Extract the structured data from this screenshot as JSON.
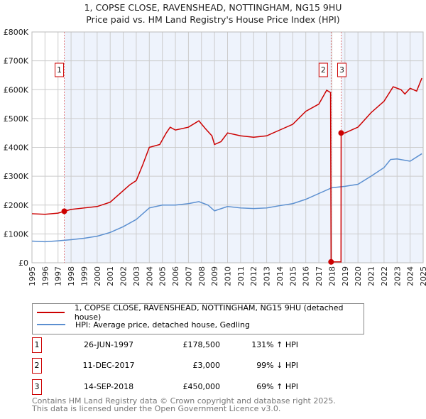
{
  "chart_data": {
    "type": "line",
    "title": "1, COPSE CLOSE, RAVENSHEAD, NOTTINGHAM, NG15 9HU",
    "subtitle": "Price paid vs. HM Land Registry's House Price Index (HPI)",
    "xlim": [
      1995,
      2025
    ],
    "ylim": [
      0,
      800000
    ],
    "yticks": [
      {
        "v": 0,
        "label": "£0"
      },
      {
        "v": 100000,
        "label": "£100K"
      },
      {
        "v": 200000,
        "label": "£200K"
      },
      {
        "v": 300000,
        "label": "£300K"
      },
      {
        "v": 400000,
        "label": "£400K"
      },
      {
        "v": 500000,
        "label": "£500K"
      },
      {
        "v": 600000,
        "label": "£600K"
      },
      {
        "v": 700000,
        "label": "£700K"
      },
      {
        "v": 800000,
        "label": "£800K"
      }
    ],
    "xticks": [
      "1995",
      "1996",
      "1997",
      "1998",
      "1999",
      "2000",
      "2001",
      "2002",
      "2003",
      "2004",
      "2005",
      "2006",
      "2007",
      "2008",
      "2009",
      "2010",
      "2011",
      "2012",
      "2013",
      "2014",
      "2015",
      "2016",
      "2017",
      "2018",
      "2019",
      "2020",
      "2021",
      "2022",
      "2023",
      "2024",
      "2025"
    ],
    "grid": true,
    "series": [
      {
        "name": "1, COPSE CLOSE, RAVENSHEAD, NOTTINGHAM, NG15 9HU (detached house)",
        "color": "#cc0000",
        "x": [
          1995,
          1996,
          1997,
          1997.48,
          1998,
          1999,
          2000,
          2001,
          2002,
          2002.5,
          2003,
          2003.5,
          2004,
          2004.8,
          2005.3,
          2005.6,
          2006,
          2007,
          2007.8,
          2008.3,
          2008.8,
          2009,
          2009.5,
          2010,
          2011,
          2012,
          2013,
          2014,
          2015,
          2016,
          2017,
          2017.6,
          2017.9,
          2017.94,
          2018.7,
          2018.71,
          2019,
          2020,
          2021,
          2022,
          2022.7,
          2023.3,
          2023.6,
          2024,
          2024.5,
          2024.9
        ],
        "y": [
          170000,
          168000,
          172000,
          178500,
          185000,
          190000,
          195000,
          210000,
          250000,
          270000,
          285000,
          340000,
          400000,
          410000,
          450000,
          470000,
          460000,
          470000,
          492000,
          465000,
          440000,
          410000,
          420000,
          450000,
          440000,
          435000,
          440000,
          460000,
          480000,
          525000,
          550000,
          598000,
          590000,
          3000,
          3000,
          450000,
          450000,
          470000,
          520000,
          560000,
          610000,
          600000,
          585000,
          605000,
          595000,
          640000
        ]
      },
      {
        "name": "HPI: Average price, detached house, Gedling",
        "color": "#5b8fd0",
        "x": [
          1995,
          1996,
          1997,
          1998,
          1999,
          2000,
          2001,
          2002,
          2003,
          2004,
          2005,
          2006,
          2007,
          2007.8,
          2008.5,
          2009,
          2010,
          2011,
          2012,
          2013,
          2014,
          2015,
          2016,
          2017,
          2018,
          2019,
          2020,
          2021,
          2022,
          2022.5,
          2023,
          2024,
          2024.9
        ],
        "y": [
          75000,
          73000,
          76000,
          80000,
          85000,
          92000,
          105000,
          125000,
          150000,
          190000,
          200000,
          200000,
          205000,
          212000,
          200000,
          180000,
          195000,
          190000,
          188000,
          190000,
          198000,
          205000,
          220000,
          240000,
          260000,
          265000,
          272000,
          300000,
          330000,
          358000,
          360000,
          352000,
          378000
        ]
      }
    ],
    "sales": [
      {
        "n": "1",
        "x": 1997.48,
        "y": 178500,
        "date": "26-JUN-1997",
        "price": "£178,500",
        "hpi": "131% ↑ HPI"
      },
      {
        "n": "2",
        "x": 2017.94,
        "y": 3000,
        "date": "11-DEC-2017",
        "price": "£3,000",
        "hpi": "99% ↓ HPI"
      },
      {
        "n": "3",
        "x": 2018.71,
        "y": 450000,
        "date": "14-SEP-2018",
        "price": "£450,000",
        "hpi": "69% ↑ HPI"
      }
    ]
  },
  "footer": {
    "line1": "Contains HM Land Registry data © Crown copyright and database right 2025.",
    "line2": "This data is licensed under the Open Government Licence v3.0."
  }
}
